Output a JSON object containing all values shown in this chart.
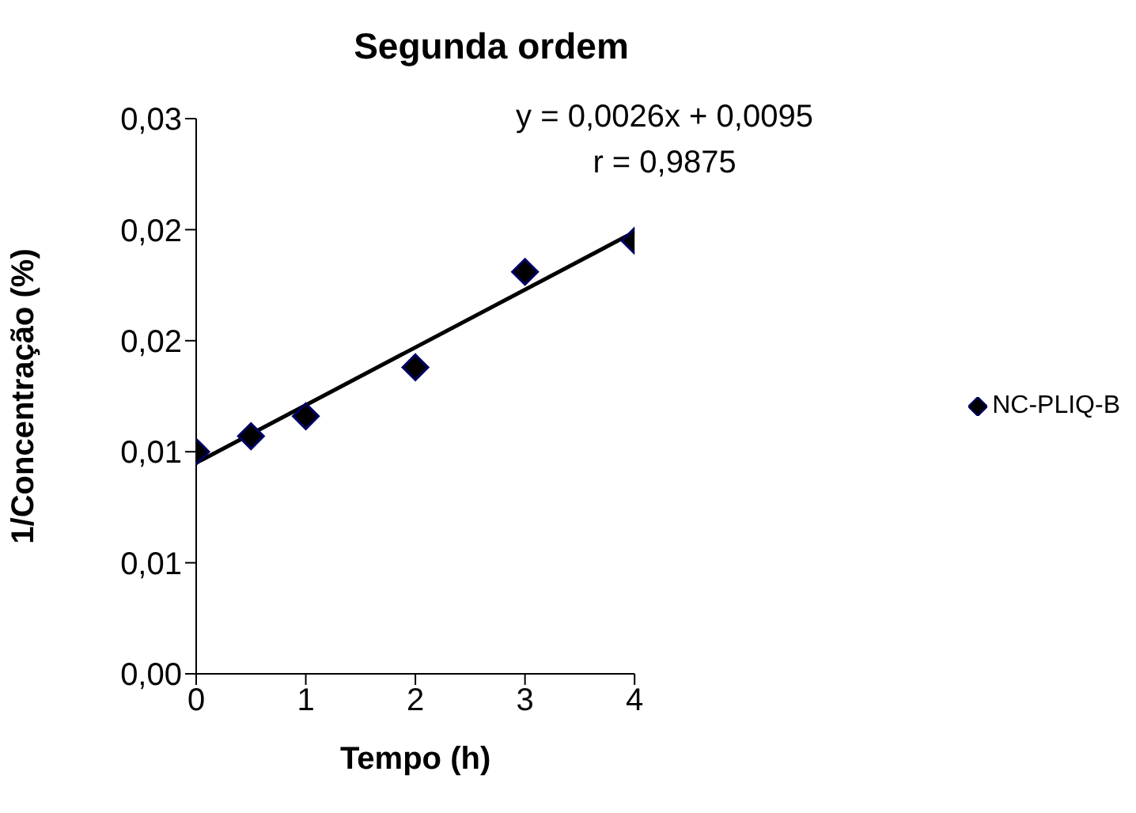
{
  "chart_data": {
    "type": "scatter",
    "title": "Segunda ordem",
    "xlabel": "Tempo (h)",
    "ylabel": "1/Concentração (%)",
    "x": [
      0,
      0.5,
      1,
      2,
      3,
      4
    ],
    "series": [
      {
        "name": "NC-PLIQ-B",
        "color": "#000066",
        "marker": "diamond",
        "values": [
          0.01,
          0.0107,
          0.0116,
          0.0138,
          0.0181,
          0.0195
        ]
      },
      {
        "type": "line",
        "color": "#000000",
        "marker": "none",
        "x": [
          0,
          4
        ],
        "values": [
          0.0095,
          0.0199
        ]
      }
    ],
    "xlim": [
      0,
      4
    ],
    "xticks": [
      0,
      1,
      2,
      3,
      4
    ],
    "ylim": [
      0,
      0.025
    ],
    "yticks": [
      {
        "value": 0,
        "label": "0,00"
      },
      {
        "value": 0.005,
        "label": "0,01"
      },
      {
        "value": 0.01,
        "label": "0,01"
      },
      {
        "value": 0.015,
        "label": "0,02"
      },
      {
        "value": 0.02,
        "label": "0,02"
      },
      {
        "value": 0.025,
        "label": "0,03"
      }
    ],
    "annotations": [
      "y = 0,0026x + 0,0095",
      "r = 0,9875"
    ],
    "legend": "right",
    "grid": false
  }
}
